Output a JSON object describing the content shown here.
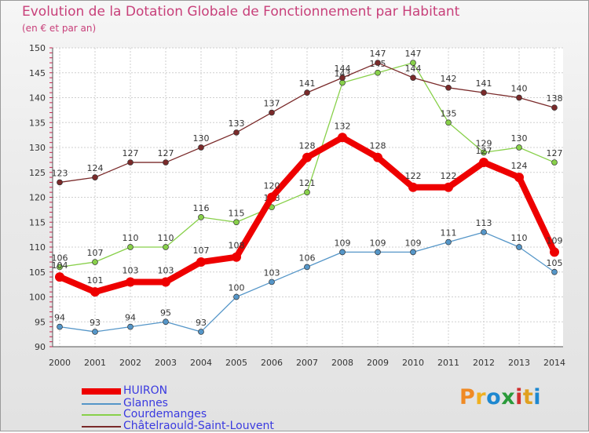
{
  "header": {
    "title": "Evolution de la Dotation Globale de Fonctionnement par Habitant",
    "subtitle": "(en € et par an)"
  },
  "logo": {
    "letters": [
      "P",
      "r",
      "o",
      "x",
      "i",
      "t",
      "i"
    ],
    "colors": [
      "#f08a24",
      "#f0b020",
      "#1e88d0",
      "#2a9a3a",
      "#d03030",
      "#e0a020",
      "#1e88d0"
    ]
  },
  "chart_data": {
    "type": "line",
    "title": "Evolution de la Dotation Globale de Fonctionnement par Habitant",
    "subtitle": "(en € et par an)",
    "x": [
      "2000",
      "2001",
      "2002",
      "2003",
      "2004",
      "2005",
      "2006",
      "2007",
      "2008",
      "2009",
      "2010",
      "2011",
      "2012",
      "2013",
      "2014"
    ],
    "ylim": [
      90,
      150
    ],
    "yticks": [
      90,
      95,
      100,
      105,
      110,
      115,
      120,
      125,
      130,
      135,
      140,
      145,
      150
    ],
    "legend_position": "bottom-left",
    "series": [
      {
        "name": "HUIRON",
        "color": "#ee0000",
        "values": [
          104,
          101,
          103,
          103,
          107,
          108,
          120,
          128,
          132,
          128,
          122,
          122,
          127,
          124,
          109
        ]
      },
      {
        "name": "Glannes",
        "color": "#5596c8",
        "values": [
          94,
          93,
          94,
          95,
          93,
          100,
          103,
          106,
          109,
          109,
          109,
          111,
          113,
          110,
          105
        ]
      },
      {
        "name": "Courdemanges",
        "color": "#88d04a",
        "values": [
          106,
          107,
          110,
          110,
          116,
          115,
          118,
          121,
          143,
          145,
          147,
          135,
          129,
          130,
          127
        ]
      },
      {
        "name": "Châtelraould-Saint-Louvent",
        "color": "#7a2a2a",
        "values": [
          123,
          124,
          127,
          127,
          130,
          133,
          137,
          141,
          144,
          147,
          144,
          142,
          141,
          140,
          138
        ]
      }
    ]
  }
}
